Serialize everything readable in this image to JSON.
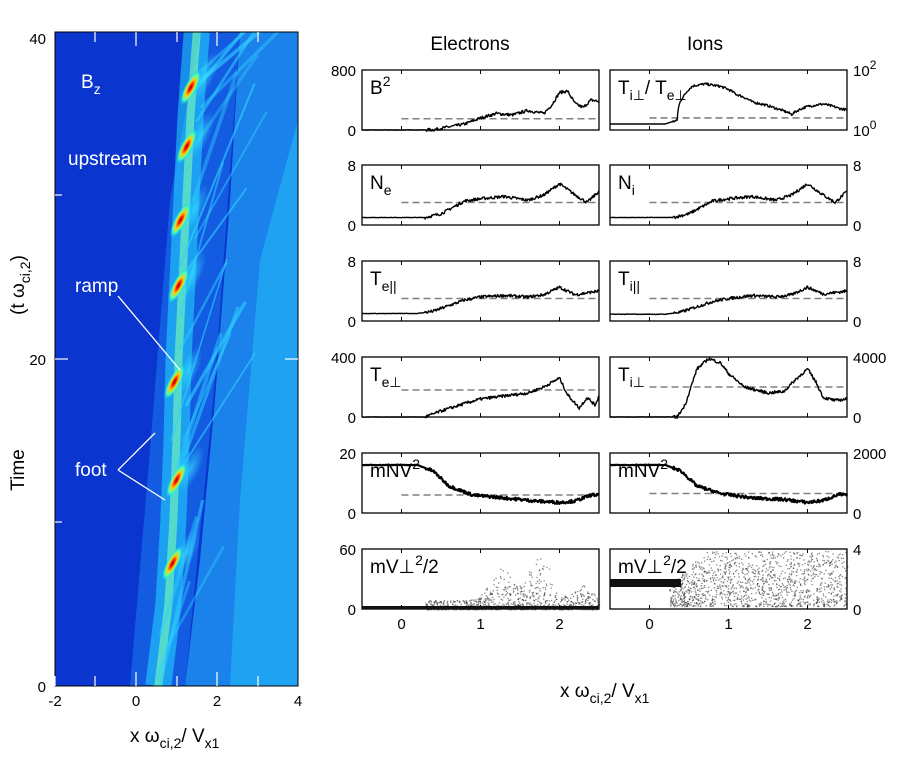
{
  "left_panel": {
    "ylabel_top": "(t ω",
    "ylabel_sub": "ci,2",
    "ylabel_close": ")",
    "ylabel_time": "Time",
    "xlabel_main": "x ω",
    "xlabel_sub1": "ci,2",
    "xlabel_slash": "/ V",
    "xlabel_sub2": "x1",
    "x_ticks": [
      "-2",
      "0",
      "2",
      "4"
    ],
    "y_ticks": [
      "0",
      "20",
      "40"
    ],
    "labels": {
      "bz_main": "B",
      "bz_sub": "z",
      "upstream": "upstream",
      "ramp": "ramp",
      "foot": "foot"
    }
  },
  "columns": {
    "electrons": "Electrons",
    "ions": "Ions"
  },
  "right_xlabel": {
    "main": "x ω",
    "sub1": "ci,2",
    "slash": "/ V",
    "sub2": "x1"
  },
  "chart_data": [
    {
      "type": "heatmap",
      "quantity": "Bz",
      "xlim": [
        -2,
        4
      ],
      "ylim": [
        0,
        40
      ],
      "x_ticks": [
        -2,
        0,
        2,
        4
      ],
      "y_ticks": [
        0,
        20,
        40
      ],
      "colormap": "jet",
      "ramp_path": [
        [
          0.55,
          0
        ],
        [
          0.8,
          5
        ],
        [
          0.92,
          10
        ],
        [
          1.0,
          15
        ],
        [
          1.05,
          20
        ],
        [
          1.15,
          25
        ],
        [
          1.25,
          30
        ],
        [
          1.35,
          35
        ],
        [
          1.5,
          40
        ]
      ],
      "peaks": [
        [
          0.9,
          7.5
        ],
        [
          1.0,
          12.6
        ],
        [
          0.95,
          18.6
        ],
        [
          1.05,
          24.5
        ],
        [
          1.1,
          28.5
        ],
        [
          1.25,
          33.0
        ],
        [
          1.35,
          36.6
        ]
      ]
    },
    {
      "type": "line",
      "panels": [
        {
          "row": 0,
          "col": "electrons",
          "label": "B^2",
          "ylim": [
            0,
            800
          ],
          "ticks": [
            "0",
            "800"
          ],
          "ref": 150,
          "values": [
            [
              -0.5,
              0
            ],
            [
              0,
              0
            ],
            [
              0.4,
              2
            ],
            [
              0.8,
              80
            ],
            [
              1.0,
              160
            ],
            [
              1.2,
              220
            ],
            [
              1.4,
              200
            ],
            [
              1.6,
              260
            ],
            [
              1.8,
              220
            ],
            [
              1.9,
              330
            ],
            [
              2.0,
              500
            ],
            [
              2.1,
              520
            ],
            [
              2.2,
              350
            ],
            [
              2.3,
              300
            ],
            [
              2.4,
              400
            ],
            [
              2.5,
              380
            ]
          ]
        },
        {
          "row": 0,
          "col": "ions",
          "label": "Ti⊥/Te⊥",
          "log": true,
          "ylim": [
            1,
            1000
          ],
          "ticks": [
            "10^0",
            "10^2"
          ],
          "ref": 4,
          "values": [
            [
              -0.5,
              2
            ],
            [
              0.2,
              2
            ],
            [
              0.35,
              3
            ],
            [
              0.45,
              60
            ],
            [
              0.55,
              160
            ],
            [
              0.7,
              200
            ],
            [
              0.9,
              150
            ],
            [
              1.1,
              60
            ],
            [
              1.3,
              25
            ],
            [
              1.6,
              12
            ],
            [
              1.8,
              6
            ],
            [
              2.0,
              15
            ],
            [
              2.2,
              20
            ],
            [
              2.4,
              12
            ],
            [
              2.5,
              10
            ]
          ]
        },
        {
          "row": 1,
          "col": "electrons",
          "label": "Ne",
          "ylim": [
            0,
            8
          ],
          "ticks": [
            "0",
            "8"
          ],
          "ref": 3,
          "values": [
            [
              -0.5,
              1
            ],
            [
              0.3,
              1
            ],
            [
              0.5,
              1.5
            ],
            [
              0.8,
              3.2
            ],
            [
              1.0,
              3.5
            ],
            [
              1.3,
              3.8
            ],
            [
              1.6,
              3.3
            ],
            [
              1.8,
              4
            ],
            [
              2.0,
              5.5
            ],
            [
              2.2,
              4
            ],
            [
              2.35,
              3
            ],
            [
              2.5,
              4.5
            ]
          ]
        },
        {
          "row": 1,
          "col": "ions",
          "label": "Ni",
          "ylim": [
            0,
            8
          ],
          "ticks": [
            "0",
            "8"
          ],
          "ref": 3,
          "values": [
            [
              -0.5,
              1
            ],
            [
              0.3,
              1
            ],
            [
              0.5,
              1.5
            ],
            [
              0.8,
              3.2
            ],
            [
              1.0,
              3.5
            ],
            [
              1.3,
              3.8
            ],
            [
              1.6,
              3.3
            ],
            [
              1.8,
              4
            ],
            [
              2.0,
              5.5
            ],
            [
              2.2,
              4
            ],
            [
              2.35,
              3
            ],
            [
              2.5,
              4.5
            ]
          ]
        },
        {
          "row": 2,
          "col": "electrons",
          "label": "Te||",
          "ylim": [
            0,
            8
          ],
          "ticks": [
            "0",
            "8"
          ],
          "ref": 3,
          "values": [
            [
              -0.5,
              1
            ],
            [
              0.2,
              1
            ],
            [
              0.4,
              1.3
            ],
            [
              0.8,
              2.8
            ],
            [
              1.0,
              3.2
            ],
            [
              1.3,
              3.4
            ],
            [
              1.6,
              3.2
            ],
            [
              1.8,
              3.5
            ],
            [
              2.0,
              4.5
            ],
            [
              2.2,
              3.5
            ],
            [
              2.5,
              4
            ]
          ]
        },
        {
          "row": 2,
          "col": "ions",
          "label": "Ti||",
          "ylim": [
            0,
            8
          ],
          "ticks": [
            "0",
            "8"
          ],
          "ref": 3,
          "values": [
            [
              -0.5,
              0.9
            ],
            [
              0.2,
              0.9
            ],
            [
              0.4,
              1.2
            ],
            [
              0.8,
              2.6
            ],
            [
              1.0,
              3.0
            ],
            [
              1.3,
              3.4
            ],
            [
              1.6,
              3.2
            ],
            [
              1.8,
              3.5
            ],
            [
              2.0,
              4.5
            ],
            [
              2.2,
              3.6
            ],
            [
              2.5,
              4
            ]
          ]
        },
        {
          "row": 3,
          "col": "electrons",
          "label": "Te⊥",
          "ylim": [
            0,
            400
          ],
          "ticks": [
            "0",
            "400"
          ],
          "ref": 180,
          "values": [
            [
              -0.5,
              0
            ],
            [
              0.3,
              0
            ],
            [
              0.5,
              40
            ],
            [
              0.8,
              90
            ],
            [
              1.0,
              120
            ],
            [
              1.3,
              140
            ],
            [
              1.6,
              160
            ],
            [
              1.8,
              200
            ],
            [
              2.0,
              260
            ],
            [
              2.1,
              150
            ],
            [
              2.25,
              60
            ],
            [
              2.35,
              130
            ],
            [
              2.45,
              80
            ],
            [
              2.5,
              140
            ]
          ]
        },
        {
          "row": 3,
          "col": "ions",
          "label": "Ti⊥",
          "ylim": [
            0,
            4000
          ],
          "ticks": [
            "0",
            "4000"
          ],
          "ref": 2000,
          "values": [
            [
              -0.5,
              0
            ],
            [
              0.35,
              0
            ],
            [
              0.45,
              800
            ],
            [
              0.6,
              3200
            ],
            [
              0.75,
              3900
            ],
            [
              0.9,
              3600
            ],
            [
              1.0,
              2900
            ],
            [
              1.2,
              2000
            ],
            [
              1.5,
              1600
            ],
            [
              1.7,
              1700
            ],
            [
              1.85,
              2500
            ],
            [
              2.0,
              3200
            ],
            [
              2.1,
              2400
            ],
            [
              2.2,
              1300
            ],
            [
              2.35,
              1100
            ],
            [
              2.5,
              1200
            ]
          ]
        },
        {
          "row": 4,
          "col": "electrons",
          "label": "mNV^2",
          "ylim": [
            0,
            20
          ],
          "ticks": [
            "0",
            "20"
          ],
          "ref": 6,
          "values": [
            [
              -0.5,
              16
            ],
            [
              0.2,
              16
            ],
            [
              0.4,
              14
            ],
            [
              0.6,
              9
            ],
            [
              0.9,
              6
            ],
            [
              1.3,
              5
            ],
            [
              1.7,
              4
            ],
            [
              2.0,
              3.5
            ],
            [
              2.2,
              4
            ],
            [
              2.4,
              6
            ],
            [
              2.5,
              6
            ]
          ]
        },
        {
          "row": 4,
          "col": "ions",
          "label": "mNV^2",
          "ylim": [
            0,
            2000
          ],
          "ticks": [
            "0",
            "2000"
          ],
          "ref": 650,
          "values": [
            [
              -0.5,
              1600
            ],
            [
              0.2,
              1600
            ],
            [
              0.4,
              1400
            ],
            [
              0.6,
              900
            ],
            [
              0.9,
              650
            ],
            [
              1.3,
              500
            ],
            [
              1.7,
              450
            ],
            [
              2.0,
              350
            ],
            [
              2.2,
              420
            ],
            [
              2.4,
              620
            ],
            [
              2.5,
              600
            ]
          ]
        }
      ]
    },
    {
      "type": "scatter",
      "panels": [
        {
          "row": 5,
          "col": "electrons",
          "label": "mV⊥^2/2",
          "ylim": [
            0,
            60
          ],
          "ticks": [
            "0",
            "60"
          ]
        },
        {
          "row": 5,
          "col": "ions",
          "label": "mV⊥^2/2",
          "ylim": [
            0,
            4
          ],
          "ticks": [
            "0",
            "4"
          ]
        }
      ]
    }
  ],
  "right_x_ticks": [
    "0",
    "1",
    "2"
  ],
  "colors": {
    "line": "#000000",
    "ref": "#808080",
    "white_text": "#ffffff"
  }
}
